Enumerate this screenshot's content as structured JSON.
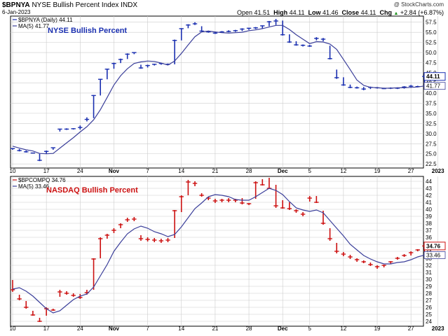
{
  "header": {
    "symbol": "$BPNYA",
    "name": "NYSE Bullish Percent Index",
    "exchange": "INDX",
    "date": "6-Jan-2023",
    "watermark": "@ StockCharts.com",
    "open_label": "Open",
    "open": "41.51",
    "high_label": "High",
    "high": "44.11",
    "low_label": "Low",
    "low": "41.46",
    "close_label": "Close",
    "close": "44.11",
    "chg_label": "Chg",
    "chg": "+2.84 (+6.87%)",
    "chg_arrow": "▲"
  },
  "colors": {
    "nyse": "#1a2fb0",
    "nasdaq": "#cc1010",
    "ma": "#3b3f9a",
    "grid": "#cccccc"
  },
  "chart_data": [
    {
      "type": "ohlc",
      "title": "NYSE Bullish Percent",
      "legend_series": "$BPNYA (Daily) 44.11",
      "legend_ma": "MA(5) 41.77",
      "last_value_label": "44.11",
      "ma_value_label": "41.77",
      "y_ticks": [
        "22.5",
        "25.0",
        "27.5",
        "30.0",
        "32.5",
        "35.0",
        "37.5",
        "40.0",
        "42.5",
        "45.0",
        "47.5",
        "50.0",
        "52.5",
        "55.0",
        "57.5"
      ],
      "ylim": [
        21.5,
        59
      ],
      "x_tick_labels": [
        "10",
        "17",
        "24",
        "Nov",
        "7",
        "14",
        "21",
        "28",
        "Dec",
        "5",
        "12",
        "19",
        "27",
        "2023"
      ],
      "x_tick_index": [
        0,
        5,
        10,
        15,
        20,
        25,
        30,
        35,
        40,
        44,
        49,
        54,
        59,
        63
      ],
      "bars": [
        [
          26.4,
          26.0,
          26.3
        ],
        [
          26.2,
          25.6,
          25.8
        ],
        [
          25.8,
          25.3,
          25.5
        ],
        [
          25.3,
          25.1,
          25.2
        ],
        [
          25.0,
          23.2,
          23.4
        ],
        [
          25.8,
          25.0,
          25.6
        ],
        [
          26.6,
          26.0,
          26.5
        ],
        [
          31.2,
          30.5,
          31.1
        ],
        [
          31.3,
          30.9,
          31.1
        ],
        [
          31.3,
          31.0,
          31.2
        ],
        [
          32.0,
          31.0,
          31.5
        ],
        [
          34.0,
          33.0,
          33.5
        ],
        [
          39.5,
          33.8,
          39.4
        ],
        [
          43.5,
          39.4,
          43.4
        ],
        [
          46.0,
          43.4,
          45.9
        ],
        [
          47.5,
          46.0,
          47.3
        ],
        [
          48.5,
          47.4,
          48.3
        ],
        [
          49.8,
          48.4,
          49.6
        ],
        [
          50.1,
          49.6,
          50.0
        ],
        [
          47.0,
          46.0,
          46.2
        ],
        [
          47.0,
          46.3,
          46.8
        ],
        [
          47.2,
          46.8,
          47.1
        ],
        [
          47.5,
          47.0,
          47.3
        ],
        [
          47.3,
          46.9,
          47.1
        ],
        [
          53.2,
          47.1,
          53.0
        ],
        [
          56.0,
          53.0,
          55.9
        ],
        [
          57.0,
          56.0,
          56.8
        ],
        [
          57.5,
          56.8,
          57.1
        ],
        [
          56.5,
          55.2,
          55.3
        ],
        [
          55.4,
          54.9,
          55.1
        ],
        [
          55.2,
          54.6,
          54.8
        ],
        [
          55.3,
          54.9,
          55.1
        ],
        [
          55.5,
          55.0,
          55.2
        ],
        [
          55.6,
          55.1,
          55.4
        ],
        [
          56.0,
          55.3,
          55.8
        ],
        [
          56.1,
          55.6,
          56.0
        ],
        [
          56.3,
          55.8,
          56.1
        ],
        [
          56.7,
          55.9,
          56.6
        ],
        [
          57.8,
          56.5,
          57.6
        ],
        [
          58.3,
          56.8,
          57.8
        ],
        [
          57.9,
          54.2,
          54.4
        ],
        [
          54.5,
          52.4,
          52.6
        ],
        [
          52.8,
          51.7,
          51.9
        ],
        [
          52.0,
          51.5,
          51.8
        ],
        [
          51.9,
          51.4,
          51.6
        ],
        [
          53.8,
          53.0,
          53.5
        ],
        [
          53.6,
          52.8,
          53.3
        ],
        [
          51.7,
          48.3,
          48.5
        ],
        [
          45.8,
          43.5,
          43.8
        ],
        [
          43.9,
          41.8,
          42.0
        ],
        [
          42.1,
          41.2,
          41.4
        ],
        [
          41.6,
          41.1,
          41.3
        ],
        [
          41.5,
          40.7,
          41.0
        ],
        [
          41.6,
          41.0,
          41.4
        ],
        [
          41.5,
          41.1,
          41.3
        ],
        [
          41.3,
          41.0,
          41.1
        ],
        [
          41.4,
          41.0,
          41.2
        ],
        [
          41.4,
          41.0,
          41.2
        ],
        [
          41.7,
          41.1,
          41.5
        ],
        [
          42.0,
          41.3,
          41.7
        ],
        [
          41.8,
          41.4,
          41.6
        ],
        [
          44.1,
          41.5,
          44.1
        ]
      ],
      "ma": [
        26.9,
        26.4,
        26.0,
        25.7,
        25.1,
        25.0,
        25.1,
        26.4,
        27.7,
        29.0,
        30.4,
        31.7,
        33.4,
        35.9,
        38.9,
        42.0,
        44.3,
        46.0,
        47.3,
        47.7,
        47.9,
        47.8,
        47.4,
        46.9,
        47.9,
        49.8,
        51.9,
        53.9,
        55.1,
        55.3,
        55.1,
        54.9,
        54.8,
        54.9,
        55.0,
        55.4,
        55.6,
        55.9,
        56.3,
        56.7,
        56.7,
        55.7,
        54.4,
        53.3,
        52.2,
        52.7,
        52.6,
        52.1,
        50.8,
        48.3,
        45.8,
        43.2,
        41.9,
        41.4,
        41.3,
        41.2,
        41.2,
        41.3,
        41.3,
        41.4,
        41.5,
        41.77
      ]
    },
    {
      "type": "ohlc",
      "title": "NASDAQ Bullish Percent",
      "legend_series": "$BPCOMPQ 34.76",
      "legend_ma": "MA(5) 33.46",
      "last_value_label": "34.76",
      "ma_value_label": "33.46",
      "y_ticks": [
        "24",
        "25",
        "26",
        "27",
        "28",
        "29",
        "30",
        "31",
        "32",
        "33",
        "34",
        "35",
        "36",
        "37",
        "38",
        "39",
        "40",
        "41",
        "42",
        "43",
        "44"
      ],
      "ylim": [
        23.3,
        44.7
      ],
      "x_tick_labels": [
        "10",
        "17",
        "24",
        "Nov",
        "7",
        "14",
        "21",
        "28",
        "Dec",
        "5",
        "12",
        "19",
        "27",
        "2023"
      ],
      "x_tick_index": [
        0,
        5,
        10,
        15,
        20,
        25,
        30,
        35,
        40,
        44,
        49,
        54,
        59,
        63
      ],
      "bars": [
        [
          29.9,
          28.2,
          28.5
        ],
        [
          27.8,
          27.0,
          27.2
        ],
        [
          26.9,
          25.8,
          26.0
        ],
        [
          25.5,
          24.8,
          24.9
        ],
        [
          24.5,
          23.9,
          24.0
        ],
        [
          26.0,
          24.8,
          25.8
        ],
        [
          25.8,
          25.5,
          25.6
        ],
        [
          28.5,
          27.5,
          28.2
        ],
        [
          28.3,
          27.8,
          28.0
        ],
        [
          28.0,
          27.5,
          27.7
        ],
        [
          27.9,
          27.2,
          27.4
        ],
        [
          28.5,
          27.8,
          28.1
        ],
        [
          33.0,
          28.5,
          32.9
        ],
        [
          36.0,
          33.0,
          35.8
        ],
        [
          36.5,
          35.8,
          36.3
        ],
        [
          37.3,
          36.6,
          37.0
        ],
        [
          38.0,
          37.3,
          37.8
        ],
        [
          38.8,
          38.2,
          38.5
        ],
        [
          38.9,
          38.3,
          38.6
        ],
        [
          36.3,
          35.5,
          35.8
        ],
        [
          36.0,
          35.4,
          35.7
        ],
        [
          35.9,
          35.3,
          35.6
        ],
        [
          35.8,
          35.2,
          35.5
        ],
        [
          35.9,
          35.3,
          35.6
        ],
        [
          39.9,
          35.9,
          39.8
        ],
        [
          42.0,
          39.6,
          41.8
        ],
        [
          44.2,
          42.0,
          43.9
        ],
        [
          44.0,
          43.3,
          43.7
        ],
        [
          42.3,
          41.8,
          42.0
        ],
        [
          41.8,
          41.3,
          41.6
        ],
        [
          41.5,
          40.9,
          41.2
        ],
        [
          41.5,
          41.0,
          41.3
        ],
        [
          41.6,
          41.0,
          41.3
        ],
        [
          41.5,
          41.0,
          41.3
        ],
        [
          41.6,
          40.7,
          40.9
        ],
        [
          40.9,
          40.6,
          40.8
        ],
        [
          44.0,
          41.5,
          43.8
        ],
        [
          44.3,
          43.4,
          43.5
        ],
        [
          44.5,
          42.9,
          43.0
        ],
        [
          43.5,
          40.2,
          40.5
        ],
        [
          41.3,
          40.1,
          40.2
        ],
        [
          41.0,
          39.9,
          40.1
        ],
        [
          40.0,
          39.5,
          39.8
        ],
        [
          39.6,
          39.0,
          39.3
        ],
        [
          41.9,
          41.1,
          41.6
        ],
        [
          41.9,
          40.9,
          41.0
        ],
        [
          39.8,
          37.8,
          38.0
        ],
        [
          37.3,
          35.5,
          35.8
        ],
        [
          35.2,
          33.7,
          34.0
        ],
        [
          33.9,
          33.3,
          33.6
        ],
        [
          33.5,
          32.9,
          33.2
        ],
        [
          33.0,
          32.5,
          32.8
        ],
        [
          32.7,
          32.3,
          32.5
        ],
        [
          32.4,
          31.9,
          32.1
        ],
        [
          32.0,
          31.5,
          31.8
        ],
        [
          32.1,
          31.7,
          32.0
        ],
        [
          32.6,
          32.2,
          32.5
        ],
        [
          33.2,
          32.8,
          33.0
        ],
        [
          33.6,
          33.2,
          33.4
        ],
        [
          34.0,
          33.4,
          33.8
        ],
        [
          34.3,
          34.0,
          34.2
        ],
        [
          34.9,
          33.8,
          34.76
        ]
      ],
      "ma": [
        28.6,
        28.8,
        28.3,
        27.6,
        26.7,
        25.8,
        25.2,
        25.5,
        26.3,
        27.1,
        27.6,
        27.9,
        28.9,
        30.5,
        32.1,
        34.0,
        35.3,
        36.5,
        37.2,
        37.6,
        37.3,
        36.8,
        36.5,
        36.1,
        36.4,
        37.5,
        38.8,
        40.1,
        40.9,
        41.8,
        42.1,
        42.0,
        41.8,
        41.4,
        41.3,
        41.3,
        41.8,
        42.4,
        43.0,
        42.7,
        42.1,
        41.1,
        40.2,
        39.9,
        39.7,
        39.9,
        39.5,
        38.4,
        37.3,
        36.2,
        35.0,
        34.2,
        33.4,
        32.9,
        32.5,
        32.2,
        32.2,
        32.4,
        32.5,
        32.8,
        33.2,
        33.46
      ]
    }
  ]
}
